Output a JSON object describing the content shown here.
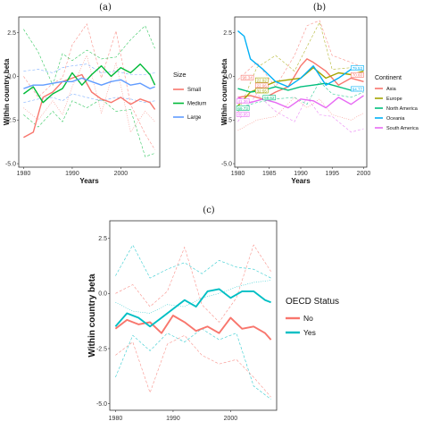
{
  "chart_data": [
    {
      "panel": "(a)",
      "type": "line",
      "xlabel": "Years",
      "ylabel": "Within country beta",
      "xlim": [
        1979,
        2008
      ],
      "ylim": [
        -5.2,
        3.4
      ],
      "xticks": [
        1980,
        1990,
        2000
      ],
      "yticks": [
        2.5,
        0.0,
        -2.5,
        -5.0
      ],
      "ytick_labels": [
        "2.5",
        "0.0",
        "-2.5",
        "-5.0"
      ],
      "legend": {
        "title": "Size",
        "placement": "right"
      },
      "series": [
        {
          "name": "Small",
          "color": "#F8766D",
          "x": [
            1980,
            1982,
            1984,
            1986,
            1988,
            1990,
            1992,
            1994,
            1996,
            1998,
            2000,
            2002,
            2004,
            2006,
            2007
          ],
          "values": [
            -3.5,
            -3.2,
            -1.2,
            -0.9,
            -0.3,
            -0.1,
            0.1,
            -0.9,
            -1.3,
            -1.5,
            -1.2,
            -1.6,
            -1.3,
            -1.5,
            -1.9
          ]
        },
        {
          "name": "Medium",
          "color": "#00BA38",
          "x": [
            1980,
            1982,
            1984,
            1986,
            1988,
            1990,
            1992,
            1994,
            1996,
            1998,
            2000,
            2002,
            2004,
            2006,
            2007
          ],
          "values": [
            -1.0,
            -0.6,
            -1.5,
            -1.0,
            -0.7,
            0.2,
            -0.5,
            0.1,
            0.6,
            0.0,
            0.5,
            0.2,
            0.7,
            0.1,
            -0.5
          ]
        },
        {
          "name": "Large",
          "color": "#619CFF",
          "x": [
            1980,
            1982,
            1984,
            1986,
            1988,
            1990,
            1992,
            1994,
            1996,
            1998,
            2000,
            2002,
            2004,
            2006,
            2007
          ],
          "values": [
            -0.7,
            -0.5,
            -0.5,
            -0.4,
            -0.3,
            -0.3,
            -0.1,
            -0.3,
            -0.5,
            -0.3,
            -0.2,
            -0.5,
            -0.4,
            -0.7,
            -0.6
          ]
        }
      ],
      "bands": [
        {
          "color": "#F8766D",
          "style": "dashed",
          "x": [
            1980,
            1983,
            1986,
            1988,
            1990,
            1993,
            1996,
            1999,
            2002,
            2005,
            2007
          ],
          "values": [
            0.0,
            -1.2,
            -0.4,
            -0.1,
            1.8,
            3.0,
            -0.1,
            2.6,
            -1.6,
            -3.3,
            -4.2
          ]
        },
        {
          "color": "#F8766D",
          "style": "dotted",
          "x": [
            1980,
            1983,
            1986,
            1988,
            1990,
            1993,
            1996,
            1999,
            2002,
            2005,
            2007
          ],
          "values": [
            -1.8,
            -2.5,
            -1.4,
            -2.2,
            -0.6,
            1.2,
            -2.1,
            0.8,
            -3.2,
            -2.0,
            -2.6
          ]
        },
        {
          "color": "#00BA38",
          "style": "dashed",
          "x": [
            1980,
            1983,
            1986,
            1988,
            1990,
            1993,
            1996,
            1999,
            2002,
            2005,
            2007
          ],
          "values": [
            2.7,
            1.4,
            -0.5,
            1.3,
            0.9,
            1.5,
            1.0,
            1.1,
            2.1,
            2.9,
            1.6
          ]
        },
        {
          "color": "#00BA38",
          "style": "dashed",
          "x": [
            1980,
            1983,
            1986,
            1988,
            1990,
            1993,
            1996,
            1999,
            2002,
            2005,
            2007
          ],
          "values": [
            -2.2,
            -2.9,
            -2.0,
            -2.6,
            -1.4,
            -1.8,
            -1.3,
            -2.0,
            -1.9,
            -4.6,
            -4.4
          ]
        },
        {
          "color": "#619CFF",
          "style": "dashed",
          "x": [
            1980,
            1983,
            1986,
            1988,
            1990,
            1993,
            1996,
            1999,
            2002,
            2005,
            2007
          ],
          "values": [
            0.3,
            0.4,
            0.2,
            0.5,
            0.6,
            0.7,
            0.2,
            0.3,
            0.1,
            0.1,
            0.2
          ]
        },
        {
          "color": "#619CFF",
          "style": "dashed",
          "x": [
            1980,
            1983,
            1986,
            1988,
            1990,
            1993,
            1996,
            1999,
            2002,
            2005,
            2007
          ],
          "values": [
            -1.5,
            -1.3,
            -1.2,
            -1.4,
            -1.0,
            -1.2,
            -1.4,
            -1.2,
            -1.3,
            -1.5,
            -1.4
          ]
        }
      ]
    },
    {
      "panel": "(b)",
      "type": "line",
      "xlabel": "Years",
      "ylabel": "Within country beta",
      "xlim": [
        1979.5,
        2000.5
      ],
      "ylim": [
        -5.2,
        3.4
      ],
      "xticks": [
        1980,
        1985,
        1990,
        1995,
        2000
      ],
      "yticks": [
        2.5,
        0.0,
        -2.5,
        -5.0
      ],
      "ytick_labels": [
        "2.5",
        "0.0",
        "-2.5",
        "-5.0"
      ],
      "legend": {
        "title": "Continent",
        "placement": "right"
      },
      "series": [
        {
          "name": "Asia",
          "color": "#F8766D",
          "x": [
            1980,
            1982,
            1984,
            1986,
            1988,
            1990,
            1991,
            1992,
            1994,
            1996,
            1998,
            2000
          ],
          "values": [
            -1.2,
            -1.1,
            -1.3,
            -0.9,
            -0.6,
            0.6,
            1.0,
            0.8,
            0.3,
            -0.5,
            -0.1,
            -0.3
          ]
        },
        {
          "name": "Europe",
          "color": "#A3A500",
          "x": [
            1980,
            1982,
            1984,
            1986,
            1988,
            1990,
            1992,
            1994,
            1996,
            1998,
            2000
          ],
          "values": [
            -1.7,
            -0.9,
            -0.6,
            -0.3,
            -0.2,
            -0.1,
            0.5,
            -0.1,
            0.2,
            0.1,
            0.3
          ]
        },
        {
          "name": "North America",
          "color": "#00BF7D",
          "x": [
            1980,
            1982,
            1984,
            1986,
            1988,
            1990,
            1992,
            1994,
            1996,
            1998,
            2000
          ],
          "values": [
            -0.7,
            -0.9,
            -0.8,
            -0.6,
            -0.8,
            -0.6,
            -0.5,
            -0.4,
            -0.6,
            -0.8,
            -0.7
          ]
        },
        {
          "name": "Oceania",
          "color": "#00B0F6",
          "x": [
            1980,
            1981,
            1982,
            1984,
            1986,
            1988,
            1990,
            1992,
            1994,
            1996,
            1998,
            2000
          ],
          "values": [
            2.6,
            2.3,
            1.0,
            0.4,
            -0.3,
            -0.6,
            -0.1,
            0.6,
            -0.5,
            -0.1,
            0.4,
            0.6
          ]
        },
        {
          "name": "South America",
          "color": "#E76BF3",
          "x": [
            1980,
            1982,
            1984,
            1986,
            1988,
            1990,
            1992,
            1994,
            1996,
            1998,
            2000
          ],
          "values": [
            -1.2,
            -1.5,
            -1.3,
            -1.5,
            -1.8,
            -1.3,
            -1.4,
            -1.8,
            -1.2,
            -1.6,
            -1.1
          ]
        }
      ],
      "annotations": [
        {
          "text": "98.34",
          "color": "#F8766D",
          "x": 1981.5,
          "y": -0.1
        },
        {
          "text": "22.92",
          "color": "#A3A500",
          "x": 1983.8,
          "y": -0.25
        },
        {
          "text": "22.96",
          "color": "#F8766D",
          "x": 1983.8,
          "y": -0.55
        },
        {
          "text": "32.55",
          "color": "#A3A500",
          "x": 1983.8,
          "y": -0.85
        },
        {
          "text": "41.36",
          "color": "#E76BF3",
          "x": 1980.8,
          "y": -1.45
        },
        {
          "text": "69.73",
          "color": "#00BF7D",
          "x": 1980.8,
          "y": -1.85
        },
        {
          "text": "80.95",
          "color": "#E76BF3",
          "x": 1980.8,
          "y": -2.2
        },
        {
          "text": "59.62",
          "color": "#00BF7D",
          "x": 1985.0,
          "y": -1.25
        },
        {
          "text": "79.53",
          "color": "#00B0F6",
          "x": 1999.0,
          "y": 0.45
        },
        {
          "text": "70.60",
          "color": "#F8766D",
          "x": 1999.0,
          "y": 0.05
        },
        {
          "text": "94.77",
          "color": "#00B0F6",
          "x": 1999.0,
          "y": -0.75
        }
      ],
      "bands": [
        {
          "color": "#F8766D",
          "style": "dashed",
          "x": [
            1980,
            1983,
            1986,
            1989,
            1991,
            1993,
            1995,
            1998,
            2000
          ],
          "values": [
            -0.2,
            0.8,
            -0.6,
            1.2,
            2.9,
            3.2,
            1.2,
            0.8,
            0.5
          ]
        },
        {
          "color": "#A3A500",
          "style": "dashed",
          "x": [
            1980,
            1983,
            1986,
            1989,
            1991,
            1993,
            1995,
            1998,
            2000
          ],
          "values": [
            -2.1,
            0.5,
            1.2,
            0.3,
            1.7,
            3.1,
            0.4,
            0.5,
            0.6
          ]
        },
        {
          "color": "#00BF7D",
          "style": "dashed",
          "x": [
            1980,
            1983,
            1986,
            1989,
            1991,
            1993,
            1995,
            1998,
            2000
          ],
          "values": [
            -1.8,
            -1.5,
            -1.3,
            -1.2,
            -1.6,
            -0.3,
            -1.0,
            -1.2,
            -0.9
          ]
        },
        {
          "color": "#E76BF3",
          "style": "dashed",
          "x": [
            1980,
            1983,
            1986,
            1989,
            1991,
            1993,
            1995,
            1998,
            2000
          ],
          "values": [
            -2.6,
            -1.0,
            -2.0,
            -2.6,
            -1.2,
            -2.2,
            -2.3,
            -3.2,
            -3.0
          ]
        },
        {
          "color": "#F8766D",
          "style": "dotted",
          "x": [
            1980,
            1983,
            1986,
            1989,
            1991,
            1993,
            1995,
            1998,
            2000
          ],
          "values": [
            -3.1,
            -2.5,
            -2.3,
            -1.2,
            -1.8,
            -1.3,
            -2.2,
            -2.5,
            -2.1
          ]
        }
      ]
    },
    {
      "panel": "(c)",
      "type": "line",
      "xlabel": "Years",
      "ylabel": "Within country beta",
      "xlim": [
        1979,
        2008
      ],
      "ylim": [
        -5.3,
        3.3
      ],
      "xticks": [
        1980,
        1990,
        2000
      ],
      "yticks": [
        2.5,
        0.0,
        -2.5,
        -5.0
      ],
      "ytick_labels": [
        "2.5",
        "0.0",
        "-2.5",
        "-5.0"
      ],
      "legend": {
        "title": "OECD Status",
        "placement": "right"
      },
      "series": [
        {
          "name": "No",
          "color": "#F8766D",
          "x": [
            1980,
            1982,
            1984,
            1986,
            1988,
            1990,
            1992,
            1994,
            1996,
            1998,
            2000,
            2002,
            2004,
            2006,
            2007
          ],
          "values": [
            -1.6,
            -1.2,
            -1.4,
            -1.3,
            -1.8,
            -1.0,
            -1.3,
            -1.7,
            -1.5,
            -1.8,
            -1.1,
            -1.6,
            -1.5,
            -1.8,
            -2.1
          ]
        },
        {
          "name": "Yes",
          "color": "#00BFC4",
          "x": [
            1980,
            1982,
            1984,
            1986,
            1988,
            1990,
            1992,
            1994,
            1996,
            1998,
            2000,
            2002,
            2004,
            2006,
            2007
          ],
          "values": [
            -1.5,
            -0.9,
            -1.1,
            -1.5,
            -1.1,
            -0.7,
            -0.3,
            -0.6,
            0.1,
            0.2,
            -0.2,
            0.1,
            0.1,
            -0.3,
            -0.4
          ]
        }
      ],
      "bands": [
        {
          "color": "#00BFC4",
          "style": "dashed",
          "x": [
            1980,
            1983,
            1986,
            1989,
            1992,
            1995,
            1998,
            2001,
            2004,
            2007
          ],
          "values": [
            0.8,
            2.2,
            0.7,
            1.1,
            1.4,
            0.9,
            1.5,
            1.2,
            1.1,
            0.7
          ]
        },
        {
          "color": "#00BFC4",
          "style": "dashed",
          "x": [
            1980,
            1983,
            1986,
            1989,
            1992,
            1995,
            1998,
            2001,
            2004,
            2007
          ],
          "values": [
            -3.8,
            -1.9,
            -2.6,
            -1.8,
            -2.2,
            -1.6,
            -2.1,
            -1.8,
            -4.2,
            -4.8
          ]
        },
        {
          "color": "#F8766D",
          "style": "dashed",
          "x": [
            1980,
            1983,
            1986,
            1989,
            1992,
            1995,
            1998,
            2001,
            2004,
            2007
          ],
          "values": [
            0.0,
            0.4,
            -0.6,
            0.1,
            2.1,
            -0.5,
            -1.3,
            -0.2,
            2.2,
            1.0
          ]
        },
        {
          "color": "#F8766D",
          "style": "dashed",
          "x": [
            1980,
            1983,
            1986,
            1989,
            1992,
            1995,
            1998,
            2001,
            2004,
            2007
          ],
          "values": [
            -2.8,
            -2.2,
            -4.5,
            -2.3,
            -1.9,
            -2.8,
            -3.2,
            -3.0,
            -3.8,
            -4.7
          ]
        },
        {
          "color": "#00BFC4",
          "style": "dotted",
          "x": [
            1980,
            1983,
            1986,
            1989,
            1992,
            1995,
            1998,
            2001,
            2004,
            2007
          ],
          "values": [
            -0.4,
            -0.8,
            -0.9,
            -0.5,
            -0.6,
            -0.2,
            0.0,
            0.3,
            0.5,
            0.6
          ]
        }
      ]
    }
  ]
}
